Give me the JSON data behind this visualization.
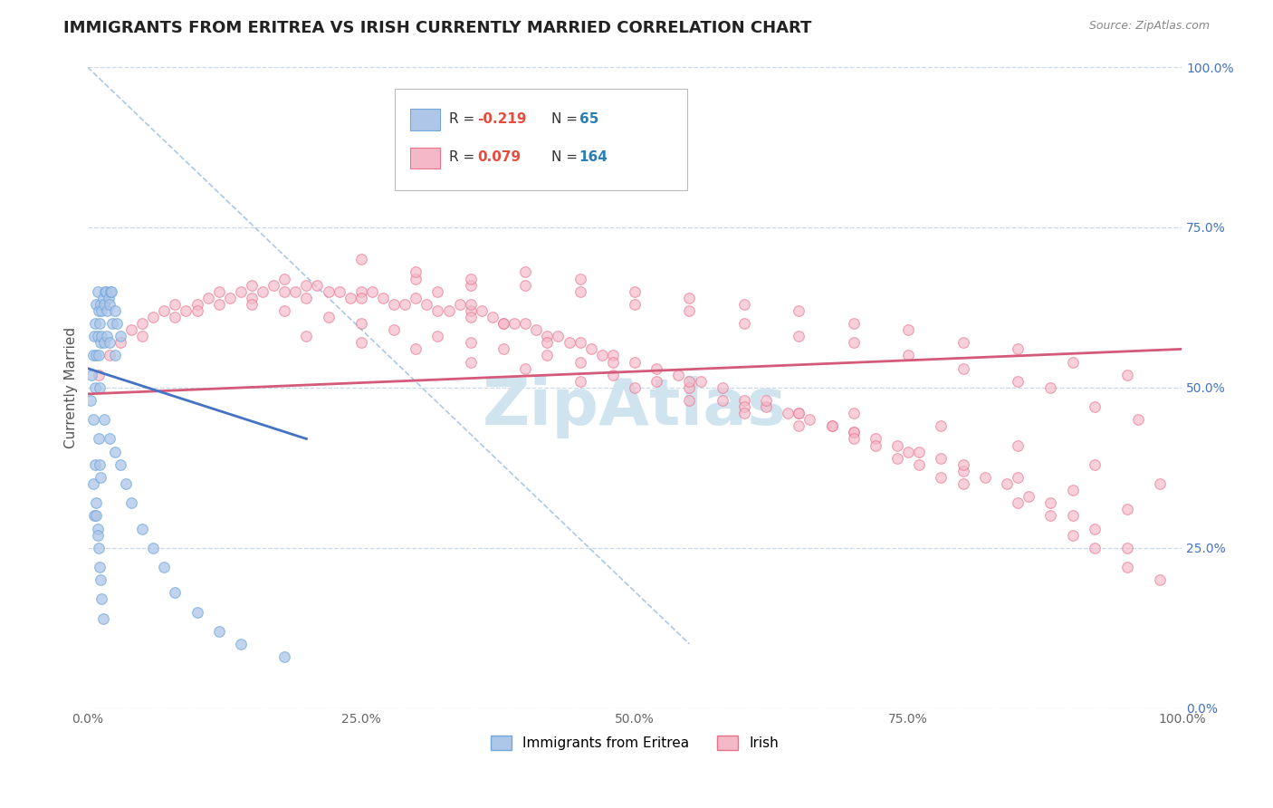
{
  "title": "IMMIGRANTS FROM ERITREA VS IRISH CURRENTLY MARRIED CORRELATION CHART",
  "source_text": "Source: ZipAtlas.com",
  "ylabel": "Currently Married",
  "xlim": [
    0.0,
    100.0
  ],
  "ylim": [
    0.0,
    100.0
  ],
  "xtick_labels": [
    "0.0%",
    "25.0%",
    "50.0%",
    "75.0%",
    "100.0%"
  ],
  "xtick_vals": [
    0,
    25,
    50,
    75,
    100
  ],
  "ytick_labels": [
    "0.0%",
    "25.0%",
    "50.0%",
    "75.0%",
    "100.0%"
  ],
  "ytick_vals": [
    0,
    25,
    50,
    75,
    100
  ],
  "blue_scatter_x": [
    0.3,
    0.4,
    0.5,
    0.5,
    0.6,
    0.7,
    0.7,
    0.8,
    0.8,
    0.9,
    0.9,
    1.0,
    1.0,
    1.1,
    1.1,
    1.2,
    1.2,
    1.3,
    1.3,
    1.4,
    1.5,
    1.5,
    1.6,
    1.7,
    1.8,
    1.8,
    1.9,
    2.0,
    2.0,
    2.1,
    2.2,
    2.3,
    2.5,
    2.5,
    2.7,
    3.0,
    0.5,
    0.6,
    0.7,
    0.8,
    0.9,
    1.0,
    1.1,
    1.2,
    1.3,
    1.4,
    1.0,
    1.1,
    1.2,
    0.8,
    0.9,
    1.5,
    2.0,
    2.5,
    3.0,
    3.5,
    4.0,
    5.0,
    6.0,
    7.0,
    8.0,
    10.0,
    12.0,
    14.0,
    18.0
  ],
  "blue_scatter_y": [
    48,
    52,
    55,
    45,
    58,
    60,
    50,
    63,
    55,
    65,
    58,
    62,
    55,
    60,
    50,
    63,
    57,
    62,
    58,
    64,
    63,
    57,
    65,
    65,
    62,
    58,
    64,
    63,
    57,
    65,
    65,
    60,
    62,
    55,
    60,
    58,
    35,
    30,
    38,
    32,
    28,
    25,
    22,
    20,
    17,
    14,
    42,
    38,
    36,
    30,
    27,
    45,
    42,
    40,
    38,
    35,
    32,
    28,
    25,
    22,
    18,
    15,
    12,
    10,
    8
  ],
  "pink_scatter_x": [
    1,
    2,
    3,
    4,
    5,
    5,
    6,
    7,
    8,
    8,
    9,
    10,
    10,
    11,
    12,
    12,
    13,
    14,
    15,
    15,
    16,
    17,
    18,
    18,
    19,
    20,
    20,
    21,
    22,
    23,
    24,
    25,
    25,
    26,
    27,
    28,
    29,
    30,
    31,
    32,
    33,
    34,
    35,
    35,
    36,
    37,
    38,
    39,
    40,
    41,
    42,
    43,
    44,
    45,
    46,
    47,
    48,
    50,
    52,
    54,
    56,
    58,
    60,
    62,
    64,
    65,
    66,
    68,
    70,
    72,
    74,
    76,
    78,
    80,
    82,
    84,
    86,
    88,
    90,
    92,
    95,
    15,
    18,
    22,
    25,
    28,
    32,
    35,
    38,
    42,
    45,
    48,
    52,
    55,
    58,
    60,
    65,
    68,
    70,
    72,
    74,
    76,
    78,
    80,
    85,
    88,
    90,
    92,
    95,
    98,
    30,
    35,
    40,
    45,
    50,
    55,
    60,
    65,
    70,
    75,
    80,
    85,
    90,
    95,
    25,
    30,
    35,
    40,
    45,
    50,
    55,
    60,
    65,
    70,
    75,
    80,
    85,
    88,
    92,
    96,
    20,
    25,
    30,
    35,
    40,
    45,
    50,
    55,
    60,
    65,
    70,
    75,
    80,
    85,
    90,
    95,
    62,
    70,
    78,
    85,
    92,
    98,
    55,
    48,
    42,
    38,
    35,
    32
  ],
  "pink_scatter_y": [
    52,
    55,
    57,
    59,
    60,
    58,
    61,
    62,
    61,
    63,
    62,
    63,
    62,
    64,
    63,
    65,
    64,
    65,
    64,
    66,
    65,
    66,
    65,
    67,
    65,
    66,
    64,
    66,
    65,
    65,
    64,
    65,
    64,
    65,
    64,
    63,
    63,
    64,
    63,
    62,
    62,
    63,
    62,
    61,
    62,
    61,
    60,
    60,
    60,
    59,
    58,
    58,
    57,
    57,
    56,
    55,
    55,
    54,
    53,
    52,
    51,
    50,
    48,
    47,
    46,
    46,
    45,
    44,
    43,
    42,
    41,
    40,
    39,
    37,
    36,
    35,
    33,
    32,
    30,
    28,
    25,
    63,
    62,
    61,
    60,
    59,
    58,
    57,
    56,
    55,
    54,
    52,
    51,
    50,
    48,
    47,
    46,
    44,
    43,
    41,
    39,
    38,
    36,
    35,
    32,
    30,
    27,
    25,
    22,
    20,
    67,
    66,
    68,
    67,
    65,
    64,
    63,
    62,
    60,
    59,
    57,
    56,
    54,
    52,
    70,
    68,
    67,
    66,
    65,
    63,
    62,
    60,
    58,
    57,
    55,
    53,
    51,
    50,
    47,
    45,
    58,
    57,
    56,
    54,
    53,
    51,
    50,
    48,
    46,
    44,
    42,
    40,
    38,
    36,
    34,
    31,
    48,
    46,
    44,
    41,
    38,
    35,
    51,
    54,
    57,
    60,
    63,
    65
  ],
  "blue_line_x": [
    0,
    20
  ],
  "blue_line_y": [
    53,
    42
  ],
  "pink_line_x": [
    0,
    100
  ],
  "pink_line_y": [
    49,
    56
  ],
  "diag_line_x": [
    0,
    55
  ],
  "diag_line_y": [
    100,
    10
  ],
  "blue_scatter_color": "#aec6e8",
  "blue_scatter_edge": "#6fa8dc",
  "pink_scatter_color": "#f5b8c8",
  "pink_scatter_edge": "#e8728a",
  "blue_line_color": "#4472c4",
  "pink_line_color": "#d45a7a",
  "diag_line_color": "#aac8e8",
  "grid_color": "#c8d8e8",
  "background_color": "#ffffff",
  "watermark_text": "ZipAtlas",
  "watermark_color": "#d0e4f0",
  "title_fontsize": 13,
  "tick_fontsize": 10,
  "source_fontsize": 9,
  "legend_R_color": "#e74c3c",
  "legend_N_color": "#2980b9",
  "legend_box_color_blue": "#aec6e8",
  "legend_box_color_pink": "#f5b8c8",
  "legend_box_edge_blue": "#6fa8dc",
  "legend_box_edge_pink": "#e8728a"
}
